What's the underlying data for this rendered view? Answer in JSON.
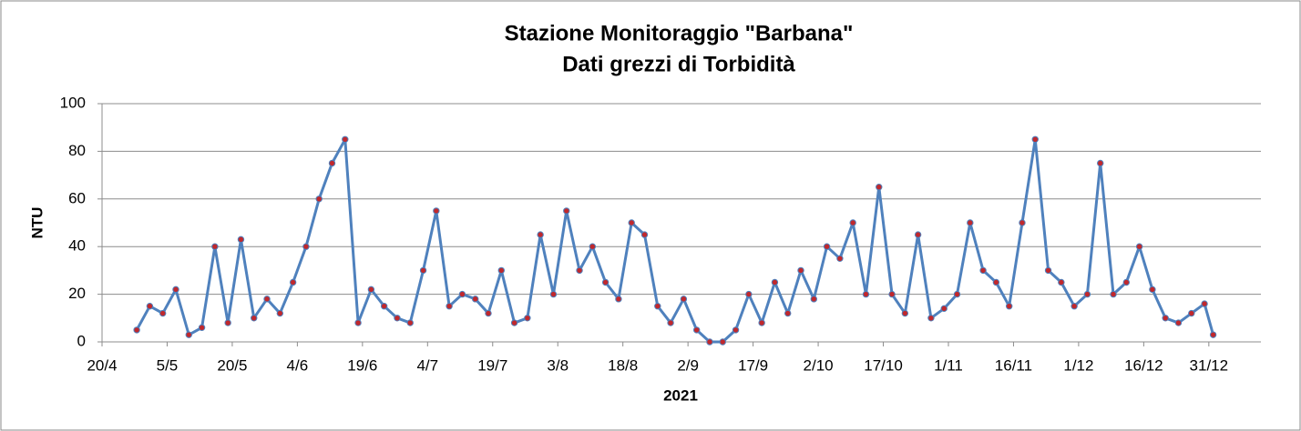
{
  "chart_data": {
    "type": "line",
    "title": "Stazione Monitoraggio \"Barbana\"",
    "subtitle": "Dati grezzi di Torbidità",
    "x_label": "2021",
    "y_label": "NTU",
    "x": [
      "28/4",
      "1/5",
      "4/5",
      "7/5",
      "10/5",
      "13/5",
      "16/5",
      "19/5",
      "22/5",
      "25/5",
      "28/5",
      "31/5",
      "3/6",
      "6/6",
      "9/6",
      "12/6",
      "15/6",
      "18/6",
      "21/6",
      "24/6",
      "27/6",
      "30/6",
      "3/7",
      "6/7",
      "9/7",
      "12/7",
      "15/7",
      "18/7",
      "21/7",
      "24/7",
      "27/7",
      "30/7",
      "2/8",
      "5/8",
      "8/8",
      "11/8",
      "14/8",
      "17/8",
      "20/8",
      "23/8",
      "26/8",
      "29/8",
      "1/9",
      "4/9",
      "7/9",
      "10/9",
      "13/9",
      "16/9",
      "19/9",
      "22/9",
      "25/9",
      "28/9",
      "1/10",
      "4/10",
      "7/10",
      "10/10",
      "13/10",
      "16/10",
      "19/10",
      "22/10",
      "25/10",
      "28/10",
      "31/10",
      "3/11",
      "6/11",
      "9/11",
      "12/11",
      "15/11",
      "18/11",
      "21/11",
      "24/11",
      "27/11",
      "30/11",
      "3/12",
      "6/12",
      "9/12",
      "12/12",
      "15/12",
      "18/12",
      "21/12",
      "24/12",
      "27/12",
      "30/12",
      "1/1"
    ],
    "series": [
      {
        "name": "NTU",
        "color": "#4f81bd",
        "marker_color": "#c0282d",
        "values": [
          5,
          15,
          12,
          22,
          3,
          6,
          40,
          8,
          43,
          10,
          18,
          12,
          25,
          40,
          60,
          75,
          85,
          8,
          22,
          15,
          10,
          8,
          30,
          55,
          15,
          20,
          18,
          12,
          30,
          8,
          10,
          45,
          20,
          55,
          30,
          40,
          25,
          18,
          50,
          45,
          15,
          8,
          18,
          5,
          0,
          0,
          5,
          20,
          8,
          25,
          12,
          30,
          18,
          40,
          35,
          50,
          20,
          65,
          20,
          12,
          45,
          10,
          14,
          20,
          50,
          30,
          25,
          15,
          50,
          85,
          30,
          25,
          15,
          20,
          75,
          20,
          25,
          40,
          22,
          10,
          8,
          12,
          16,
          3
        ]
      }
    ],
    "xlim": [
      "20/4",
      "12/1"
    ],
    "xticks": [
      "20/4",
      "5/5",
      "20/5",
      "4/6",
      "19/6",
      "4/7",
      "19/7",
      "3/8",
      "18/8",
      "2/9",
      "17/9",
      "2/10",
      "17/10",
      "1/11",
      "16/11",
      "1/12",
      "16/12",
      "31/12"
    ],
    "ylim": [
      0,
      100
    ],
    "yticks": [
      0,
      20,
      40,
      60,
      80,
      100
    ],
    "grid": true
  }
}
